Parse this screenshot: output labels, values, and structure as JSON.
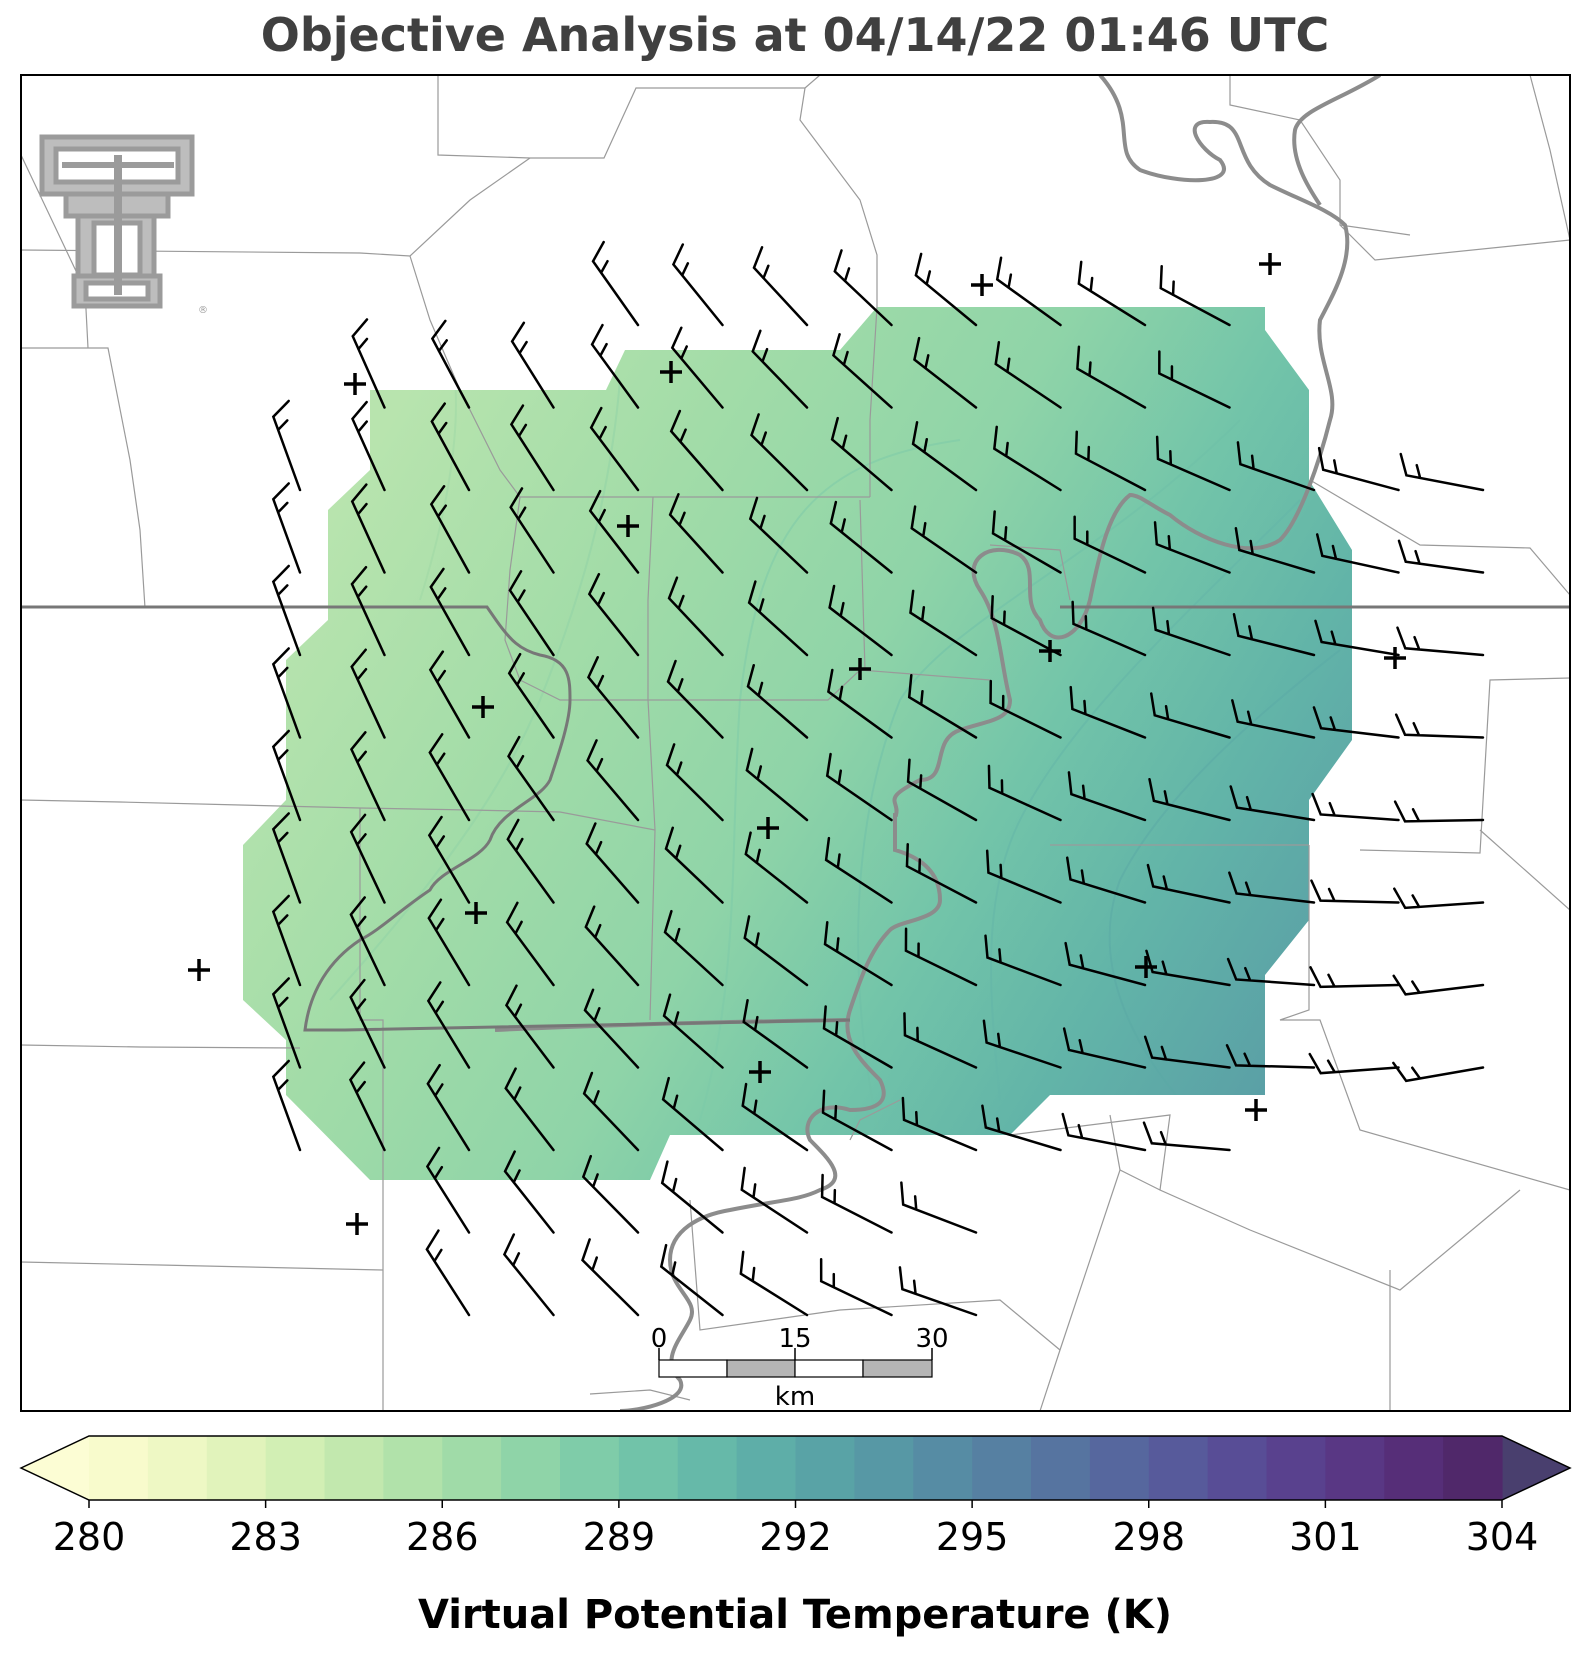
{
  "title": "Objective Analysis at 04/14/22 01:46 UTC",
  "colorbar": {
    "label": "Virtual Potential Temperature (K)",
    "min": 280,
    "max": 306,
    "step": 1,
    "ticks": [
      280,
      283,
      286,
      289,
      292,
      295,
      298,
      301,
      304
    ],
    "colors": [
      "#f8fbcc",
      "#eef8c4",
      "#e1f3bb",
      "#d2efb4",
      "#c2e8ae",
      "#b1e2aa",
      "#a0dba8",
      "#8fd4a8",
      "#7fcca9",
      "#71c3a9",
      "#66b9a9",
      "#5eaea8",
      "#59a3a6",
      "#5798a5",
      "#568ca4",
      "#5680a2",
      "#5674a0",
      "#56679e",
      "#575a9b",
      "#584d96",
      "#59418e",
      "#593784",
      "#562e78",
      "#50286a"
    ]
  },
  "scale_bar": {
    "unit": "km",
    "labels": [
      "0",
      "15",
      "30"
    ]
  },
  "logo": "texas-tech-double-t-logo",
  "station_markers_count": 14,
  "wind_barbs_count": 195
}
